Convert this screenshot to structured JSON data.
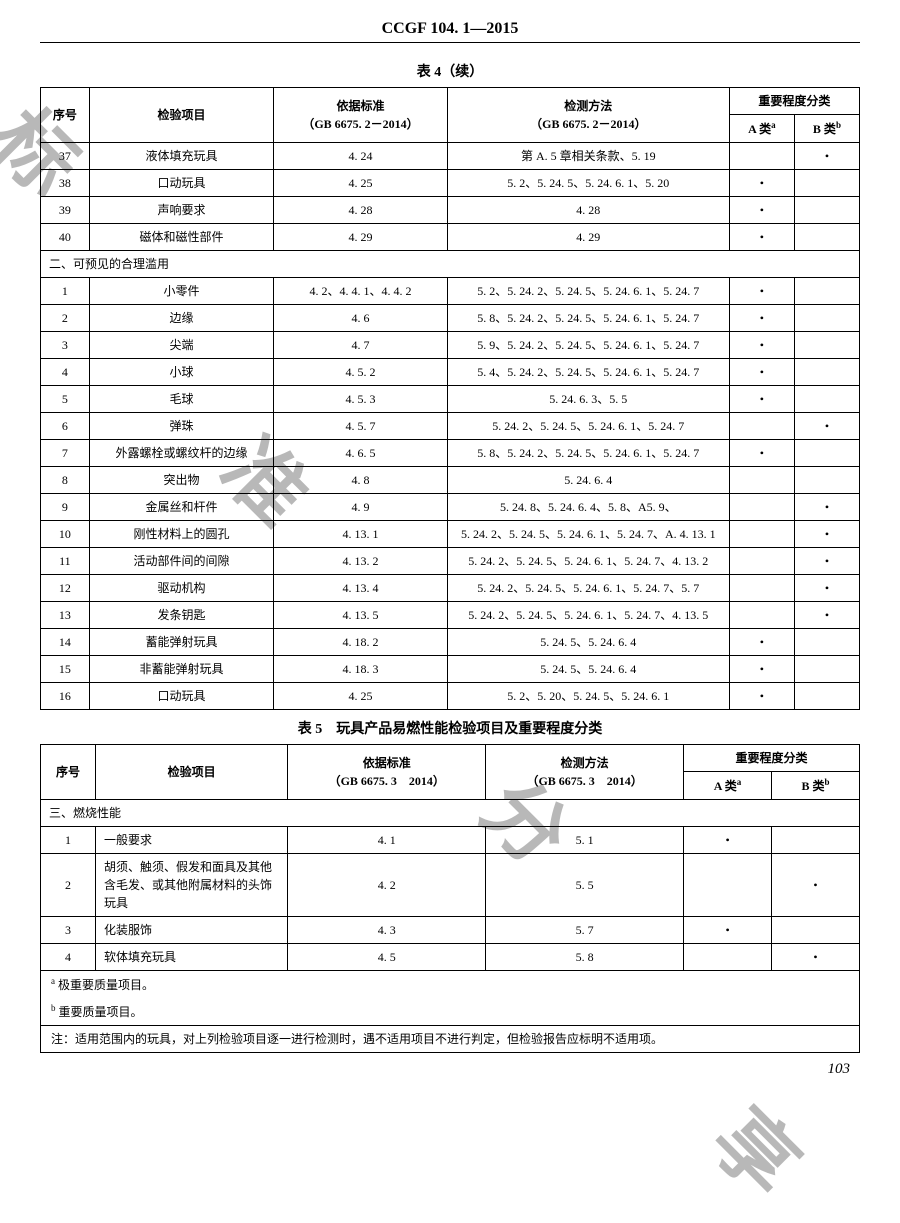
{
  "doc_code": "CCGF 104. 1—2015",
  "table4": {
    "caption": "表 4（续）",
    "headers": {
      "seq": "序号",
      "item": "检验项目",
      "std": "依据标准",
      "std_sub": "（GB 6675. 2－2014）",
      "method": "检测方法",
      "method_sub": "（GB 6675. 2－2014）",
      "importance": "重要程度分类",
      "a": "A 类",
      "b": "B 类"
    },
    "rows_top": [
      {
        "seq": "37",
        "item": "液体填充玩具",
        "std": "4. 24",
        "method": "第 A. 5 章相关条款、5. 19",
        "a": "",
        "b": "•"
      },
      {
        "seq": "38",
        "item": "口动玩具",
        "std": "4. 25",
        "method": "5. 2、5. 24. 5、5. 24. 6. 1、5. 20",
        "a": "•",
        "b": ""
      },
      {
        "seq": "39",
        "item": "声响要求",
        "std": "4. 28",
        "method": "4. 28",
        "a": "•",
        "b": ""
      },
      {
        "seq": "40",
        "item": "磁体和磁性部件",
        "std": "4. 29",
        "method": "4. 29",
        "a": "•",
        "b": ""
      }
    ],
    "section2": "二、可预见的合理滥用",
    "rows_sec2": [
      {
        "seq": "1",
        "item": "小零件",
        "std": "4. 2、4. 4. 1、4. 4. 2",
        "method": "5. 2、5. 24. 2、5. 24. 5、5. 24. 6. 1、5. 24. 7",
        "a": "•",
        "b": ""
      },
      {
        "seq": "2",
        "item": "边缘",
        "std": "4. 6",
        "method": "5. 8、5. 24. 2、5. 24. 5、5. 24. 6. 1、5. 24. 7",
        "a": "•",
        "b": ""
      },
      {
        "seq": "3",
        "item": "尖端",
        "std": "4. 7",
        "method": "5. 9、5. 24. 2、5. 24. 5、5. 24. 6. 1、5. 24. 7",
        "a": "•",
        "b": ""
      },
      {
        "seq": "4",
        "item": "小球",
        "std": "4. 5. 2",
        "method": "5. 4、5. 24. 2、5. 24. 5、5. 24. 6. 1、5. 24. 7",
        "a": "•",
        "b": ""
      },
      {
        "seq": "5",
        "item": "毛球",
        "std": "4. 5. 3",
        "method": "5. 24. 6. 3、5. 5",
        "a": "•",
        "b": ""
      },
      {
        "seq": "6",
        "item": "弹珠",
        "std": "4. 5. 7",
        "method": "5. 24. 2、5. 24. 5、5. 24. 6. 1、5. 24. 7",
        "a": "",
        "b": "•"
      },
      {
        "seq": "7",
        "item": "外露螺栓或螺纹杆的边缘",
        "std": "4. 6. 5",
        "method": "5. 8、5. 24. 2、5. 24. 5、5. 24. 6. 1、5. 24. 7",
        "a": "•",
        "b": ""
      },
      {
        "seq": "8",
        "item": "突出物",
        "std": "4. 8",
        "method": "5. 24. 6. 4",
        "a": "",
        "b": ""
      },
      {
        "seq": "9",
        "item": "金属丝和杆件",
        "std": "4. 9",
        "method": "5. 24. 8、5. 24. 6. 4、5. 8、A5. 9、",
        "a": "",
        "b": "•"
      },
      {
        "seq": "10",
        "item": "刚性材料上的圆孔",
        "std": "4. 13. 1",
        "method": "5. 24. 2、5. 24. 5、5. 24. 6. 1、5. 24. 7、A. 4. 13. 1",
        "a": "",
        "b": "•"
      },
      {
        "seq": "11",
        "item": "活动部件间的间隙",
        "std": "4. 13. 2",
        "method": "5. 24. 2、5. 24. 5、5. 24. 6. 1、5. 24. 7、4. 13. 2",
        "a": "",
        "b": "•"
      },
      {
        "seq": "12",
        "item": "驱动机构",
        "std": "4. 13. 4",
        "method": "5. 24. 2、5. 24. 5、5. 24. 6. 1、5. 24. 7、5. 7",
        "a": "",
        "b": "•"
      },
      {
        "seq": "13",
        "item": "发条钥匙",
        "std": "4. 13. 5",
        "method": "5. 24. 2、5. 24. 5、5. 24. 6. 1、5. 24. 7、4. 13. 5",
        "a": "",
        "b": "•"
      },
      {
        "seq": "14",
        "item": "蓄能弹射玩具",
        "std": "4. 18. 2",
        "method": "5. 24. 5、5. 24. 6. 4",
        "a": "•",
        "b": ""
      },
      {
        "seq": "15",
        "item": "非蓄能弹射玩具",
        "std": "4. 18. 3",
        "method": "5. 24. 5、5. 24. 6. 4",
        "a": "•",
        "b": ""
      },
      {
        "seq": "16",
        "item": "口动玩具",
        "std": "4. 25",
        "method": "5. 2、5. 20、5. 24. 5、5. 24. 6. 1",
        "a": "•",
        "b": ""
      }
    ]
  },
  "table5": {
    "caption": "表 5　玩具产品易燃性能检验项目及重要程度分类",
    "headers": {
      "seq": "序号",
      "item": "检验项目",
      "std": "依据标准",
      "std_sub": "（GB 6675. 3　2014）",
      "method": "检测方法",
      "method_sub": "（GB 6675. 3　2014）",
      "importance": "重要程度分类",
      "a": "A 类",
      "b": "B 类"
    },
    "section3": "三、燃烧性能",
    "rows": [
      {
        "seq": "1",
        "item": "一般要求",
        "std": "4. 1",
        "method": "5. 1",
        "a": "•",
        "b": ""
      },
      {
        "seq": "2",
        "item": "胡须、触须、假发和面具及其他含毛发、或其他附属材料的头饰玩具",
        "std": "4. 2",
        "method": "5. 5",
        "a": "",
        "b": "•"
      },
      {
        "seq": "3",
        "item": "化装服饰",
        "std": "4. 3",
        "method": "5. 7",
        "a": "•",
        "b": ""
      },
      {
        "seq": "4",
        "item": "软体填充玩具",
        "std": "4. 5",
        "method": "5. 8",
        "a": "",
        "b": "•"
      }
    ],
    "foot_a": "极重要质量项目。",
    "foot_b": "重要质量项目。",
    "note": "注：适用范围内的玩具，对上列检验项目逐一进行检测时，遇不适用项目不进行判定，但检验报告应标明不适用项。"
  },
  "page_num": "103",
  "sup_a": "a",
  "sup_b": "b"
}
